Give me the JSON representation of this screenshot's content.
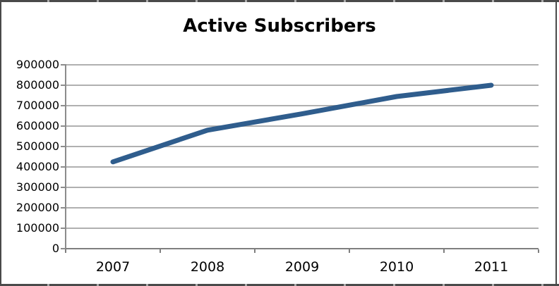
{
  "chart_data": {
    "type": "line",
    "title": "Active Subscribers",
    "categories": [
      "2007",
      "2008",
      "2009",
      "2010",
      "2011"
    ],
    "series": [
      {
        "name": "Active Subscribers",
        "values": [
          425000,
          580000,
          660000,
          745000,
          800000
        ]
      }
    ],
    "xlabel": "",
    "ylabel": "",
    "ylim": [
      0,
      900000
    ],
    "y_tick_values": [
      0,
      100000,
      200000,
      300000,
      400000,
      500000,
      600000,
      700000,
      800000,
      900000
    ],
    "y_tick_labels": [
      "0",
      "100000",
      "200000",
      "300000",
      "400000",
      "500000",
      "600000",
      "700000",
      "800000",
      "900000"
    ],
    "grid": "horizontal",
    "legend_position": "none"
  },
  "colors": {
    "line": "#2f5d8d",
    "gridline": "#b0b0b0",
    "axis": "#8c8c8c",
    "x_axis": "#7f7f7f",
    "text": "#000000",
    "background": "#ffffff",
    "frame_border": "#4a4a4a"
  }
}
